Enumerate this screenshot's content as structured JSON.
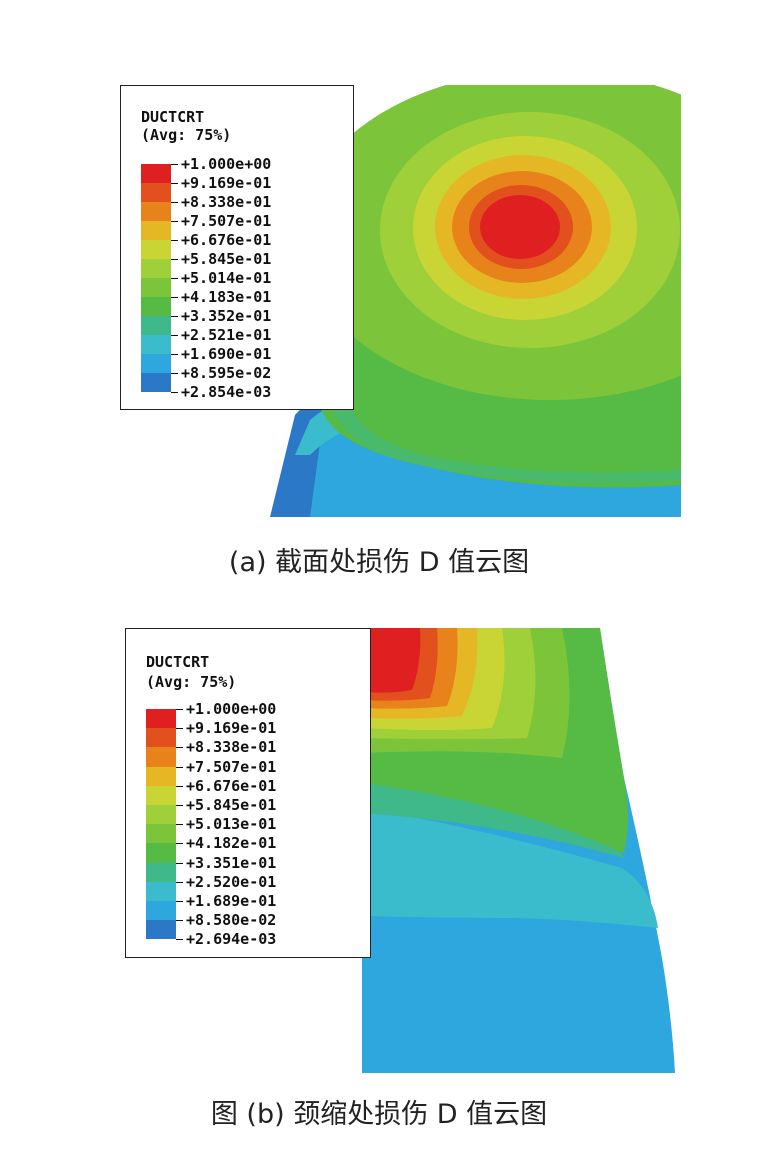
{
  "figure_a": {
    "legend": {
      "title_line1": "DUCTCRT",
      "title_line2": "(Avg: 75%)",
      "labels": [
        "+1.000e+00",
        "+9.169e-01",
        "+8.338e-01",
        "+7.507e-01",
        "+6.676e-01",
        "+5.845e-01",
        "+5.014e-01",
        "+4.183e-01",
        "+3.352e-01",
        "+2.521e-01",
        "+1.690e-01",
        "+8.595e-02",
        "+2.854e-03"
      ]
    },
    "caption": "(a) 截面处损伤 D 值云图"
  },
  "figure_b": {
    "legend": {
      "title_line1": "DUCTCRT",
      "title_line2": "(Avg: 75%)",
      "labels": [
        "+1.000e+00",
        "+9.169e-01",
        "+8.338e-01",
        "+7.507e-01",
        "+6.676e-01",
        "+5.845e-01",
        "+5.013e-01",
        "+4.182e-01",
        "+3.351e-01",
        "+2.520e-01",
        "+1.689e-01",
        "+8.580e-02",
        "+2.694e-03"
      ]
    },
    "caption": "图 (b) 颈缩处损伤 D 值云图"
  },
  "colors": {
    "scale": [
      "#e02020",
      "#e2501e",
      "#e8831c",
      "#e6b725",
      "#c9d535",
      "#9fd03a",
      "#7cc53b",
      "#55bb45",
      "#3fb88a",
      "#3bbccc",
      "#2ea6de",
      "#2b78c6",
      "#2349a8"
    ]
  }
}
